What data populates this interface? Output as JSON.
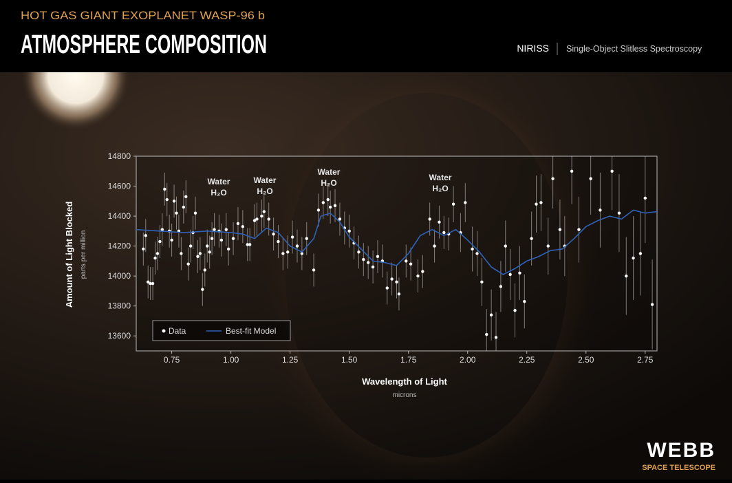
{
  "header": {
    "kicker": "HOT GAS GIANT EXOPLANET WASP-96 b",
    "title": "ATMOSPHERE COMPOSITION",
    "instrument": "NIRISS",
    "mode": "Single-Object Slitless Spectroscopy"
  },
  "logo": {
    "name": "WEBB",
    "subtitle": "SPACE TELESCOPE"
  },
  "chart_data": {
    "type": "scatter",
    "y_label": "Amount of Light Blocked",
    "y_sublabel": "parts per million",
    "x_label": "Wavelength of Light",
    "x_sublabel": "microns",
    "annotations": [
      {
        "text": "Water",
        "formula": "H₂O"
      },
      {
        "text": "Water",
        "formula": "H₂O"
      },
      {
        "text": "Water",
        "formula": "H₂O"
      },
      {
        "text": "Water",
        "formula": "H₂O"
      }
    ],
    "xlim": [
      0.6,
      2.8
    ],
    "ylim": [
      13500,
      14800
    ],
    "xticks": [
      0.75,
      {
        "value": 1,
        "label": "1.00"
      },
      1.25,
      {
        "value": 1.5,
        "label": "1.50"
      },
      1.75,
      {
        "value": 2,
        "label": "2.00"
      },
      2.25,
      {
        "value": 2.5,
        "label": "2.50"
      },
      2.75
    ],
    "yticks": [
      13600,
      13800,
      14000,
      14200,
      14400,
      14600,
      14800
    ],
    "legend": "lower left",
    "series": [
      {
        "name": "Data",
        "type": "scatter",
        "color": "#ffffff",
        "x": [
          0.63,
          0.64,
          0.65,
          0.66,
          0.67,
          0.68,
          0.69,
          0.7,
          0.71,
          0.72,
          0.73,
          0.74,
          0.75,
          0.76,
          0.77,
          0.78,
          0.79,
          0.8,
          0.81,
          0.82,
          0.83,
          0.84,
          0.85,
          0.86,
          0.87,
          0.88,
          0.89,
          0.9,
          0.91,
          0.92,
          0.93,
          0.95,
          0.96,
          0.98,
          0.99,
          1.01,
          1.03,
          1.05,
          1.07,
          1.08,
          1.1,
          1.11,
          1.13,
          1.14,
          1.16,
          1.18,
          1.2,
          1.22,
          1.24,
          1.26,
          1.28,
          1.3,
          1.32,
          1.35,
          1.37,
          1.39,
          1.41,
          1.42,
          1.44,
          1.46,
          1.48,
          1.5,
          1.52,
          1.54,
          1.56,
          1.58,
          1.6,
          1.62,
          1.64,
          1.66,
          1.68,
          1.7,
          1.71,
          1.74,
          1.76,
          1.79,
          1.81,
          1.84,
          1.86,
          1.88,
          1.9,
          1.92,
          1.94,
          1.97,
          1.99,
          2.02,
          2.04,
          2.06,
          2.08,
          2.1,
          2.12,
          2.14,
          2.16,
          2.18,
          2.2,
          2.22,
          2.24,
          2.27,
          2.29,
          2.31,
          2.34,
          2.36,
          2.39,
          2.41,
          2.44,
          2.47,
          2.52,
          2.56,
          2.61,
          2.64,
          2.67,
          2.7,
          2.73,
          2.75,
          2.78
        ],
        "values": [
          14180,
          14270,
          13960,
          13950,
          13950,
          14120,
          14150,
          14230,
          14310,
          14580,
          14510,
          14300,
          14240,
          14500,
          14420,
          14300,
          14150,
          14460,
          14530,
          14080,
          14200,
          14290,
          14420,
          14130,
          14150,
          13910,
          14040,
          14200,
          14160,
          14250,
          14310,
          14300,
          14240,
          14310,
          14180,
          14250,
          14350,
          14330,
          14210,
          14210,
          14370,
          14380,
          14400,
          14430,
          14380,
          14280,
          14230,
          14150,
          14160,
          14260,
          14200,
          14150,
          14250,
          14040,
          14440,
          14490,
          14510,
          14460,
          14470,
          14380,
          14320,
          14300,
          14220,
          14160,
          14110,
          14090,
          14060,
          14130,
          14100,
          13920,
          13980,
          13960,
          13880,
          14100,
          14080,
          14000,
          14030,
          14380,
          14200,
          14360,
          14290,
          14280,
          14480,
          14290,
          14490,
          14180,
          14150,
          13960,
          13610,
          13740,
          13590,
          13930,
          14200,
          14010,
          13770,
          14020,
          13830,
          14250,
          14480,
          14490,
          14200,
          14650,
          14310,
          14200,
          14700,
          14310,
          14650,
          14440,
          14700,
          14420,
          14000,
          14120,
          14150,
          14520,
          13810
        ],
        "errors": [
          110,
          110,
          110,
          110,
          110,
          110,
          110,
          110,
          110,
          110,
          110,
          110,
          110,
          110,
          110,
          110,
          110,
          110,
          110,
          110,
          110,
          110,
          110,
          110,
          110,
          110,
          110,
          110,
          110,
          110,
          110,
          110,
          110,
          110,
          110,
          110,
          110,
          110,
          110,
          110,
          110,
          110,
          110,
          110,
          110,
          110,
          110,
          110,
          110,
          110,
          110,
          110,
          110,
          110,
          110,
          110,
          110,
          110,
          110,
          110,
          110,
          110,
          110,
          110,
          110,
          110,
          110,
          110,
          110,
          110,
          110,
          110,
          110,
          110,
          110,
          110,
          110,
          110,
          110,
          110,
          110,
          110,
          120,
          130,
          130,
          150,
          150,
          160,
          170,
          170,
          170,
          170,
          170,
          170,
          180,
          180,
          180,
          180,
          190,
          190,
          190,
          200,
          200,
          200,
          220,
          220,
          240,
          250,
          260,
          260,
          260,
          280,
          280,
          300,
          300
        ]
      },
      {
        "name": "Best-fit Model",
        "type": "line",
        "color": "#2f62b8",
        "x": [
          0.6,
          0.7,
          0.8,
          0.9,
          1.0,
          1.05,
          1.1,
          1.15,
          1.2,
          1.25,
          1.3,
          1.35,
          1.38,
          1.42,
          1.46,
          1.5,
          1.55,
          1.6,
          1.65,
          1.7,
          1.75,
          1.8,
          1.85,
          1.9,
          1.95,
          2.0,
          2.05,
          2.1,
          2.15,
          2.2,
          2.25,
          2.3,
          2.35,
          2.4,
          2.45,
          2.5,
          2.55,
          2.6,
          2.65,
          2.7,
          2.75,
          2.8
        ],
        "values": [
          14310,
          14300,
          14290,
          14300,
          14290,
          14280,
          14250,
          14320,
          14290,
          14200,
          14160,
          14250,
          14400,
          14420,
          14360,
          14260,
          14180,
          14100,
          14090,
          14070,
          14150,
          14270,
          14310,
          14270,
          14310,
          14240,
          14160,
          14060,
          14010,
          14050,
          14100,
          14130,
          14170,
          14180,
          14250,
          14330,
          14370,
          14400,
          14380,
          14440,
          14420,
          14430
        ]
      }
    ]
  }
}
